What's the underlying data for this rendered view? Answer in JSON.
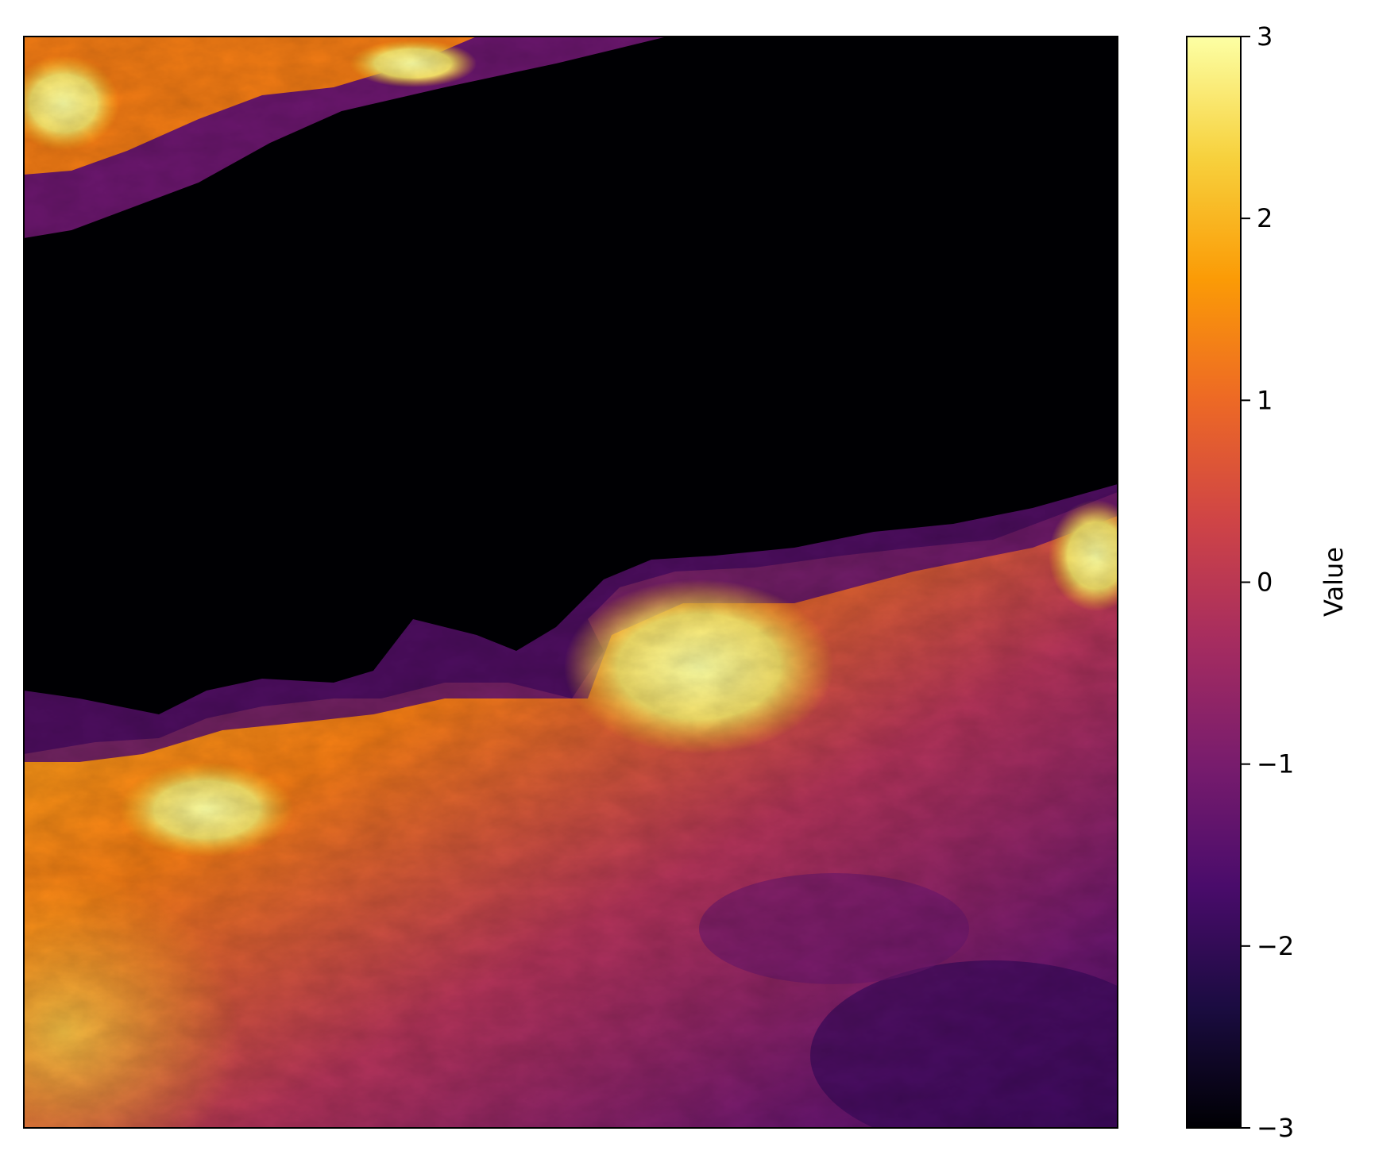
{
  "chart_data": {
    "type": "heatmap",
    "title": "",
    "xlabel": "",
    "ylabel": "",
    "colormap": "inferno",
    "colorbar": {
      "label": "Value",
      "range": [
        -3,
        3
      ],
      "ticks": [
        3,
        2,
        1,
        0,
        -1,
        -2,
        -3
      ],
      "tick_labels": [
        "3",
        "2",
        "1",
        "0",
        "−1",
        "−2",
        "−3"
      ]
    },
    "axes_ticks_visible": false,
    "colors": [
      "#000004",
      "#1b0c41",
      "#4a0c6b",
      "#781c6d",
      "#a52c60",
      "#cf4446",
      "#ed6925",
      "#fb9b06",
      "#f7d13d",
      "#fcffa4"
    ]
  }
}
